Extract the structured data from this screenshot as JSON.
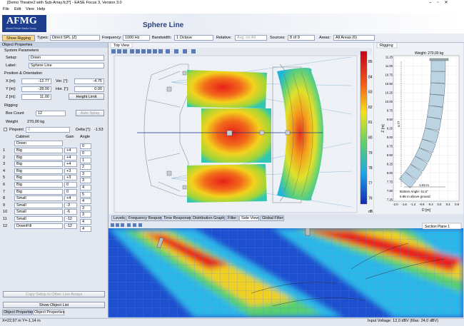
{
  "window": {
    "title": "[Demo Theatre2 with Sub-Array.fc3*] - EASE Focus 3, Version 3.0",
    "menu": [
      "File",
      "Edit",
      "View",
      "Help"
    ]
  },
  "header": {
    "logo": "AFMG",
    "logo_sub": "Ahnert Feistel Media Group",
    "title": "Sphere Line"
  },
  "toolbar": {
    "show_rigging": "Show Rigging",
    "fields": [
      {
        "label": "Types:",
        "value": "Direct SPL (Z)"
      },
      {
        "label": "Frequency:",
        "value": "1000 Hz"
      },
      {
        "label": "Bandwidth:",
        "value": "1 Octave"
      },
      {
        "label": "Relative:",
        "value": "Avg. on All"
      },
      {
        "label": "Sources:",
        "value": "8 of 9"
      },
      {
        "label": "Areas:",
        "value": "All Areas (6)"
      }
    ]
  },
  "object_properties": {
    "title": "Object Properties",
    "system_parameters": "System Parameters",
    "setup_label": "Setup:",
    "setup": "Down",
    "label_label": "Label:",
    "label": "Sphere Line",
    "position_heading": "Position & Orientation",
    "x_label": "X [m]:",
    "x": "-12.77",
    "ver_label": "Ver. [°]:",
    "ver": "-4.75",
    "y_label": "Y [m]:",
    "y": "-28.00",
    "hor_label": "Hor. [°]:",
    "hor": "0.00",
    "z_label": "Z [m]:",
    "z": "11.00",
    "height_limit": "Height Limit",
    "rigging_heading": "Rigging",
    "box_count_label": "Box Count",
    "box_count": "12",
    "auto_splay": "Auto Splay",
    "weight_label": "Weight",
    "weight": "270,00 kg",
    "pinpoint": "Pinpoint",
    "pinpoint_value": "0",
    "delta_label": "Delta [°]:",
    "delta": "-1.53",
    "columns": [
      "Cabinet",
      "Gain",
      "Angle"
    ],
    "top_row": {
      "cabinet": "Down",
      "angle": "0"
    },
    "rows": [
      {
        "index": "1",
        "cabinet": "Big",
        "gain": "+4",
        "angle": "0"
      },
      {
        "index": "2",
        "cabinet": "Big",
        "gain": "+4",
        "angle": "1"
      },
      {
        "index": "3",
        "cabinet": "Big",
        "gain": "+4",
        "angle": "2"
      },
      {
        "index": "4",
        "cabinet": "Big",
        "gain": "+3",
        "angle": "3"
      },
      {
        "index": "5",
        "cabinet": "Big",
        "gain": "+3",
        "angle": "3"
      },
      {
        "index": "6",
        "cabinet": "Big",
        "gain": "0",
        "angle": "4"
      },
      {
        "index": "7",
        "cabinet": "Big",
        "gain": "0",
        "angle": "5"
      },
      {
        "index": "8",
        "cabinet": "Small",
        "gain": "+4",
        "angle": "4"
      },
      {
        "index": "9",
        "cabinet": "Small",
        "gain": "-3",
        "angle": "3"
      },
      {
        "index": "10",
        "cabinet": "Small",
        "gain": "-6",
        "angle": "3"
      },
      {
        "index": "11",
        "cabinet": "Small",
        "gain": "-12",
        "angle": "4"
      },
      {
        "index": "12",
        "cabinet": "DownFill",
        "gain": "-12",
        "angle": "4"
      }
    ],
    "copy_setup": "Copy Setup to Other Line Arrays",
    "show_object_list": "Show Object List",
    "tabs": [
      "Object Properties",
      "Object Properties"
    ]
  },
  "top_view": {
    "tab": "Top View",
    "scale": [
      "85",
      "84",
      "83",
      "82",
      "81",
      "80",
      "79",
      "78",
      "77",
      "76"
    ],
    "scale_unit": "dB"
  },
  "rigging": {
    "tab": "Rigging",
    "weight": "Weight: 270,00 kg",
    "yticks": [
      "11.25",
      "11.00",
      "10.75",
      "10.50",
      "10.25",
      "10.00",
      "9.75",
      "9.50",
      "9.25",
      "9.00",
      "8.75",
      "8.50",
      "8.25",
      "8.00",
      "7.75",
      "7.50",
      "7.25"
    ],
    "xticks": [
      "-2.0",
      "-1.6",
      "-1.2",
      "-0.8",
      "-0.4",
      "0.0",
      "0.4",
      "0.8"
    ],
    "y_label": "Z [m]",
    "x_label": "D [m]",
    "height_dim": "4.77",
    "width_dim": "1.03 m",
    "bottom_angle": "Bottom Angle: 41.5°",
    "above_ground": "6.86 m above ground"
  },
  "bottom_tabs": [
    "Levels",
    "Frequency Response",
    "Time Response",
    "Distribution Graph",
    "Filter",
    "Side View",
    "Global Filter"
  ],
  "side_view": {
    "section": "Section Plane 1"
  },
  "status": {
    "position": "X=22,97 m Y=-1,14 m",
    "input": "Input Voltage: 12,0 dBV (Max: 24,0 dBV)"
  }
}
